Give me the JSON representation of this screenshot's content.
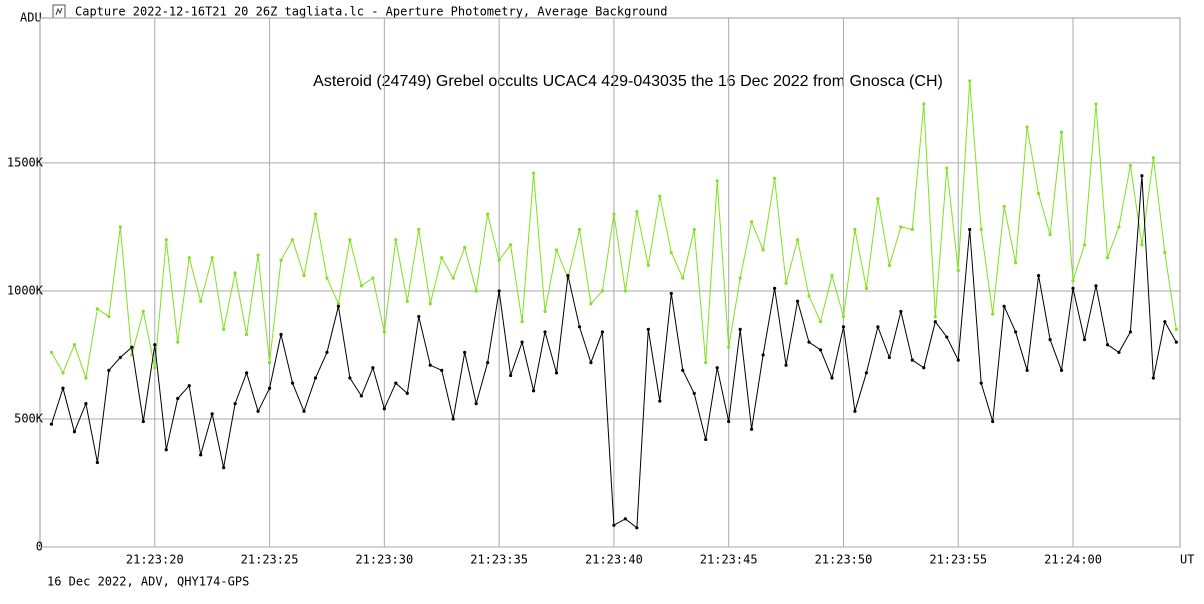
{
  "window_title": "Capture 2022-12-16T21_20_26Z_tagliata.lc - Aperture Photometry, Average Background",
  "chart_data": {
    "type": "line",
    "title": "Asteroid (24749) Grebel occults UCAC4 429-043035 the 16 Dec 2022 from Gnosca (CH)",
    "y_label": "ADU",
    "x_label": "UT",
    "footnote": "16 Dec 2022, ADV, QHY174-GPS",
    "x": [
      15.5,
      16,
      16.5,
      17,
      17.5,
      18,
      18.5,
      19,
      19.5,
      20,
      20.5,
      21,
      21.5,
      22,
      22.5,
      23,
      23.5,
      24,
      24.5,
      25,
      25.5,
      26,
      26.5,
      27,
      27.5,
      28,
      28.5,
      29,
      29.5,
      30,
      30.5,
      31,
      31.5,
      32,
      32.5,
      33,
      33.5,
      34,
      34.5,
      35,
      35.5,
      36,
      36.5,
      37,
      37.5,
      38,
      38.5,
      39,
      39.5,
      40,
      40.5,
      41,
      41.5,
      42,
      42.5,
      43,
      43.5,
      44,
      44.5,
      45,
      45.5,
      46,
      46.5,
      47,
      47.5,
      48,
      48.5,
      49,
      49.5,
      50,
      50.5,
      51,
      51.5,
      52,
      52.5,
      53,
      53.5,
      54,
      54.5,
      55,
      55.5,
      56,
      56.5,
      57,
      57.5,
      58,
      58.5,
      59,
      59.5,
      60,
      60.5,
      61,
      61.5,
      62,
      62.5,
      63,
      63.5,
      64,
      64.5
    ],
    "series": [
      {
        "color": "#7fe21e",
        "values": [
          760000,
          680000,
          790000,
          660000,
          930000,
          900000,
          1250000,
          750000,
          920000,
          700000,
          1200000,
          800000,
          1130000,
          960000,
          1130000,
          850000,
          1070000,
          830000,
          1140000,
          720000,
          1120000,
          1200000,
          1060000,
          1300000,
          1050000,
          950000,
          1200000,
          1020000,
          1050000,
          840000,
          1200000,
          960000,
          1240000,
          950000,
          1130000,
          1050000,
          1170000,
          1000000,
          1300000,
          1120000,
          1180000,
          880000,
          1460000,
          920000,
          1160000,
          1050000,
          1240000,
          950000,
          1000000,
          1300000,
          1000000,
          1310000,
          1100000,
          1370000,
          1150000,
          1050000,
          1240000,
          720000,
          1430000,
          780000,
          1050000,
          1270000,
          1160000,
          1440000,
          1030000,
          1200000,
          980000,
          880000,
          1060000,
          900000,
          1240000,
          1010000,
          1360000,
          1100000,
          1250000,
          1240000,
          1730000,
          900000,
          1480000,
          1080000,
          1820000,
          1240000,
          910000,
          1330000,
          1110000,
          1640000,
          1380000,
          1220000,
          1620000,
          1040000,
          1180000,
          1730000,
          1130000,
          1250000,
          1490000,
          1180000,
          1520000,
          1150000,
          850000
        ]
      },
      {
        "color": "#000000",
        "values": [
          480000,
          620000,
          450000,
          560000,
          330000,
          690000,
          740000,
          780000,
          490000,
          790000,
          380000,
          580000,
          630000,
          360000,
          520000,
          310000,
          560000,
          680000,
          530000,
          620000,
          830000,
          640000,
          530000,
          660000,
          760000,
          940000,
          660000,
          590000,
          700000,
          540000,
          640000,
          600000,
          900000,
          710000,
          690000,
          500000,
          760000,
          560000,
          720000,
          1000000,
          670000,
          800000,
          610000,
          840000,
          680000,
          1060000,
          860000,
          720000,
          840000,
          85000,
          110000,
          75000,
          850000,
          570000,
          990000,
          690000,
          600000,
          420000,
          700000,
          490000,
          850000,
          460000,
          750000,
          1010000,
          710000,
          960000,
          800000,
          770000,
          660000,
          860000,
          530000,
          680000,
          860000,
          740000,
          920000,
          730000,
          700000,
          880000,
          820000,
          730000,
          1240000,
          640000,
          490000,
          940000,
          840000,
          690000,
          1060000,
          810000,
          690000,
          1010000,
          810000,
          1020000,
          790000,
          760000,
          840000,
          1450000,
          660000,
          880000,
          800000
        ]
      }
    ],
    "xlim": [
      15,
      64.66
    ],
    "xticks": [
      {
        "value": 20,
        "label": "21:23:20"
      },
      {
        "value": 25,
        "label": "21:23:25"
      },
      {
        "value": 30,
        "label": "21:23:30"
      },
      {
        "value": 35,
        "label": "21:23:35"
      },
      {
        "value": 40,
        "label": "21:23:40"
      },
      {
        "value": 45,
        "label": "21:23:45"
      },
      {
        "value": 50,
        "label": "21:23:50"
      },
      {
        "value": 55,
        "label": "21:23:55"
      },
      {
        "value": 60,
        "label": "21:24:00"
      }
    ],
    "ylim": [
      0,
      2066000
    ],
    "yticks": [
      0,
      {
        "value": 500000,
        "label": "500K"
      },
      {
        "value": 1000000,
        "label": "1000K"
      },
      {
        "value": 1500000,
        "label": "1500K"
      }
    ],
    "grid": true
  }
}
